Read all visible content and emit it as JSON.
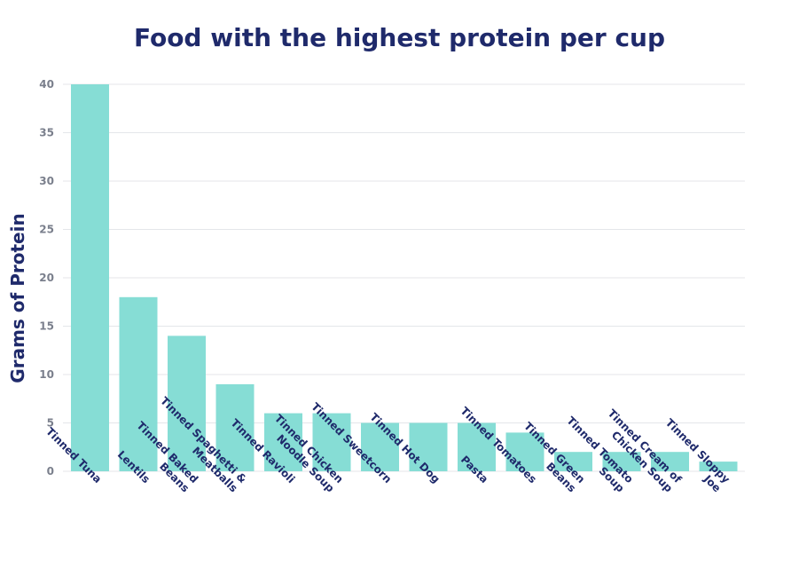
{
  "chart_data": {
    "type": "bar",
    "title": "Food with the highest protein per cup",
    "xlabel": "",
    "ylabel": "Grams of Protein",
    "ylim": [
      0,
      40
    ],
    "yticks": [
      0,
      5,
      10,
      15,
      20,
      25,
      30,
      35,
      40
    ],
    "grid": true,
    "bar_color": "#86ddd5",
    "text_color": "#1f2a6b",
    "categories": [
      [
        "Tinned Tuna"
      ],
      [
        "Lentils"
      ],
      [
        "Tinned Baked",
        "Beans"
      ],
      [
        "Tinned Spaghetti &",
        "Meatballs"
      ],
      [
        "Tinned Ravioli"
      ],
      [
        "Tinned Chicken",
        "Noodle Soup"
      ],
      [
        "Tinned Sweetcorn"
      ],
      [
        "Tinned Hot Dog"
      ],
      [
        "Pasta"
      ],
      [
        "Tinned Tomatoes"
      ],
      [
        "Tinned Green",
        "Beans"
      ],
      [
        "Tinned Tomato",
        "Soup"
      ],
      [
        "Tinned Cream of",
        "Chicken Soup"
      ],
      [
        "Tinned Sloppy",
        "Joe"
      ]
    ],
    "values": [
      40,
      18,
      14,
      9,
      6,
      6,
      5,
      5,
      5,
      4,
      2,
      2,
      2,
      1
    ]
  }
}
